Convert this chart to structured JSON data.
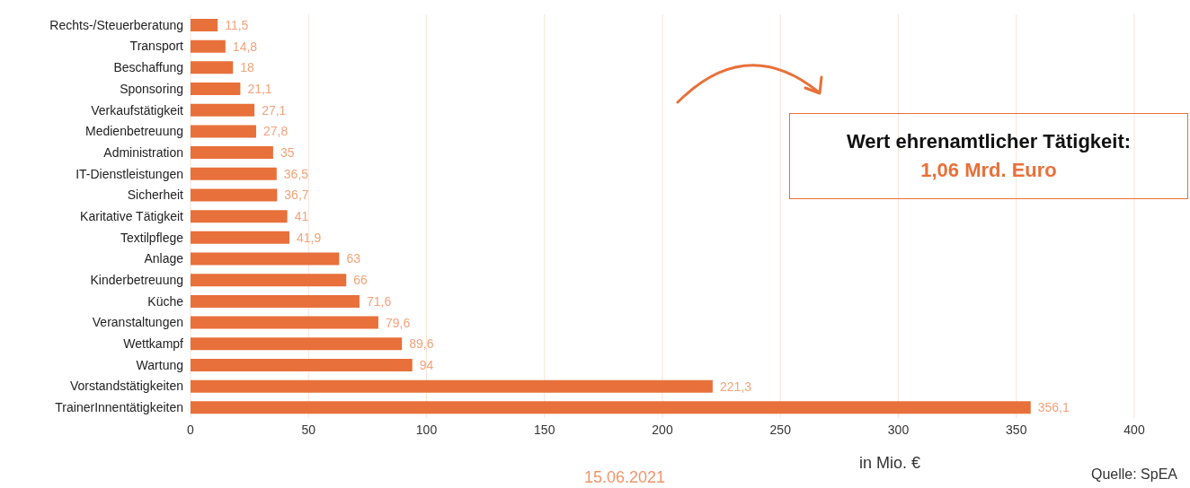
{
  "chart_data": {
    "type": "bar",
    "orientation": "horizontal",
    "categories": [
      "Rechts-/Steuerberatung",
      "Transport",
      "Beschaffung",
      "Sponsoring",
      "Verkaufstätigkeit",
      "Medienbetreuung",
      "Administration",
      "IT-Dienstleistungen",
      "Sicherheit",
      "Karitative Tätigkeit",
      "Textilpflege",
      "Anlage",
      "Kinderbetreuung",
      "Küche",
      "Veranstaltungen",
      "Wettkampf",
      "Wartung",
      "Vorstandstätigkeiten",
      "TrainerInnentätigkeiten"
    ],
    "values": [
      11.5,
      14.8,
      18,
      21.1,
      27.1,
      27.8,
      35,
      36.5,
      36.7,
      41,
      41.9,
      63,
      66,
      71.6,
      79.6,
      89.6,
      94,
      221.3,
      356.1
    ],
    "value_labels": [
      "11,5",
      "14,8",
      "18",
      "21,1",
      "27,1",
      "27,8",
      "35",
      "36,5",
      "36,7",
      "41",
      "41,9",
      "63",
      "66",
      "71,6",
      "79,6",
      "89,6",
      "94",
      "221,3",
      "356,1"
    ],
    "color": "#e8703a",
    "xlabel": "in Mio. €",
    "xlim": [
      0,
      400
    ],
    "xticks": [
      0,
      50,
      100,
      150,
      200,
      250,
      300,
      350,
      400
    ],
    "grid": "x",
    "legend": false,
    "annotations": [
      "Wert ehrenamtlicher Tätigkeit:",
      "1,06 Mrd. Euro",
      "15.06.2021",
      "Quelle: SpEA"
    ]
  }
}
